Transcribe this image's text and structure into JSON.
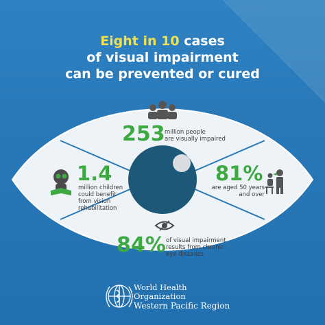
{
  "headline": {
    "highlight": "Eight in 10",
    "line1_rest": " cases",
    "line2": "of visual impairment",
    "line3": "can be prevented or cured"
  },
  "stats": {
    "top": {
      "value": "253",
      "desc_line1": "million people",
      "desc_line2": "are visually impaired"
    },
    "left": {
      "value": "1.4",
      "desc_line1": "million children",
      "desc_line2": "could benefit",
      "desc_line3": "from vision",
      "desc_line4": "rehabilitation"
    },
    "right": {
      "value": "81%",
      "desc_line1": "are aged 50 years",
      "desc_line2": "and over"
    },
    "bottom": {
      "value": "84%",
      "desc_line1": "of visual impairment",
      "desc_line2": "results from chronic",
      "desc_line3": "eye diseases"
    }
  },
  "icons": {
    "top": "people-group-icon",
    "left": "child-reading-icon",
    "right": "eye-examination-icon",
    "bottom": "eye-disease-icon",
    "logo": "who-emblem-icon"
  },
  "footer": {
    "line1": "World Health",
    "line2": "Organization",
    "line3": "Western Pacific Region"
  },
  "colors": {
    "background": "#2a7ab8",
    "highlight": "#f2e14b",
    "stat_green": "#3ea843",
    "iris": "#1d5878",
    "eye_white": "#eef3f8"
  }
}
